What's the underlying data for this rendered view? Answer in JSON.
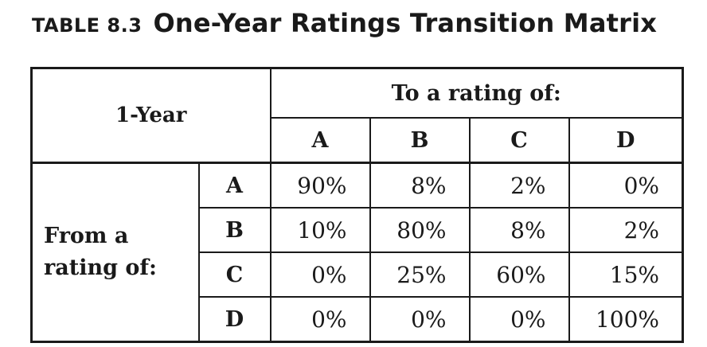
{
  "table_label": "TABLE 8.3",
  "table_title": "One-Year Ratings Transition Matrix",
  "corner_label": "1-Year",
  "to_header": "To a rating of:",
  "from_header_line1": "From a",
  "from_header_line2": "rating of:",
  "columns": [
    "A",
    "B",
    "C",
    "D"
  ],
  "rows": [
    {
      "label": "A",
      "values": [
        "90%",
        "8%",
        "2%",
        "0%"
      ]
    },
    {
      "label": "B",
      "values": [
        "10%",
        "80%",
        "8%",
        "2%"
      ]
    },
    {
      "label": "C",
      "values": [
        "0%",
        "25%",
        "60%",
        "15%"
      ]
    },
    {
      "label": "D",
      "values": [
        "0%",
        "0%",
        "0%",
        "100%"
      ]
    }
  ]
}
